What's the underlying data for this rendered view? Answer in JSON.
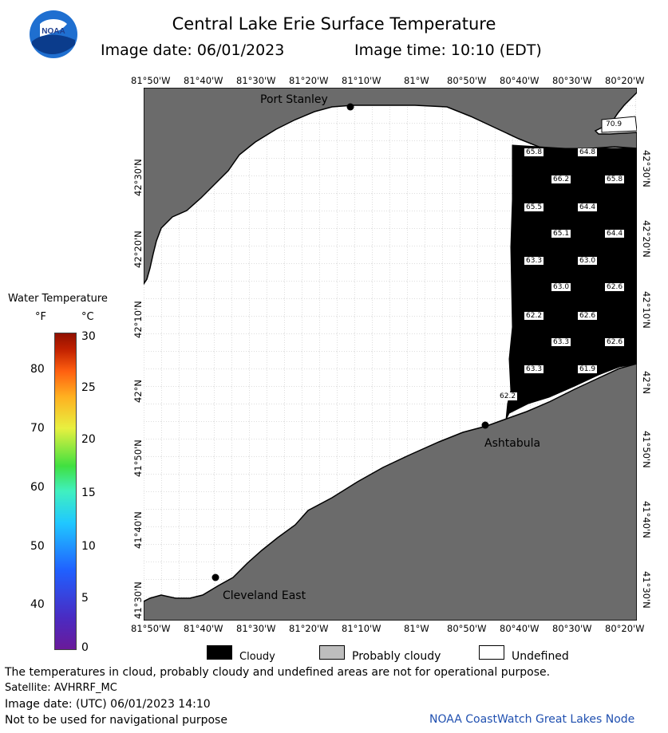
{
  "header": {
    "title": "Central Lake Erie Surface Temperature",
    "image_date": "Image date: 06/01/2023",
    "image_time": "Image time: 10:10 (EDT)"
  },
  "logo": {
    "text": "NOAA"
  },
  "x_ticks": [
    "81°50'W",
    "81°40'W",
    "81°30'W",
    "81°20'W",
    "81°10'W",
    "81°W",
    "80°50'W",
    "80°40'W",
    "80°30'W",
    "80°20'W"
  ],
  "y_ticks": [
    "42°30'N",
    "42°20'N",
    "42°10'N",
    "42°N",
    "41°50'N",
    "41°40'N",
    "41°30'N"
  ],
  "cities": [
    "Port Stanley",
    "Ashtabula",
    "Cleveland East"
  ],
  "temperature_readings": [
    "70.9",
    "65.8",
    "64.8",
    "66.2",
    "65.8",
    "65.5",
    "64.4",
    "65.1",
    "64.4",
    "63.3",
    "63.0",
    "63.0",
    "62.6",
    "62.2",
    "62.6",
    "63.3",
    "62.6",
    "63.3",
    "61.9",
    "62.2"
  ],
  "colorbar": {
    "title": "Water Temperature",
    "f_label": "°F",
    "c_label": "°C",
    "f_ticks": [
      "80",
      "70",
      "60",
      "50",
      "40"
    ],
    "c_ticks": [
      "30",
      "25",
      "20",
      "15",
      "10",
      "5",
      "0"
    ]
  },
  "legend": {
    "cloudy": "Cloudy",
    "probably_cloudy": "Probably cloudy",
    "undefined": "Undefined"
  },
  "footer": {
    "disclaimer": "The temperatures in cloud, probably cloudy and undefined areas are not for operational purpose.",
    "satellite": "Satellite: AVHRRF_MC",
    "utc_date": "Image date: (UTC) 06/01/2023  14:10",
    "nav_note": "Not to be used for navigational purpose",
    "credit": "NOAA CoastWatch Great Lakes Node"
  },
  "colors": {
    "land": "#6b6b6b",
    "cloud": "#000000",
    "probably_cloudy": "#bdbdbd",
    "water": "#ffffff",
    "credit": "#2050b0"
  }
}
